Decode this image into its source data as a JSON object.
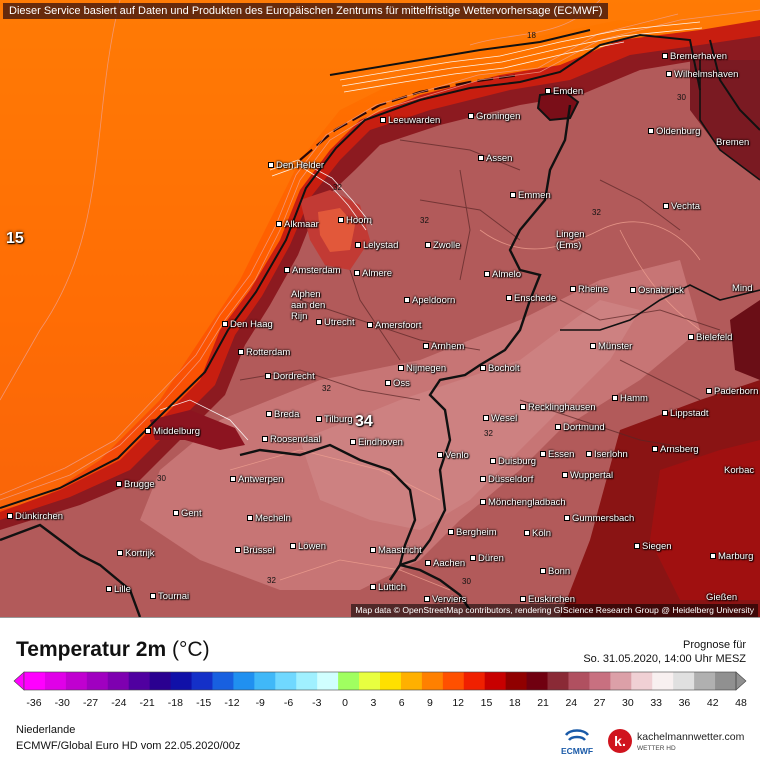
{
  "banner": "Dieser Service basiert auf Daten und Produkten des Europäischen Zentrums für mittelfristige Wettervorhersage (ECMWF)",
  "attribution": "Map data © OpenStreetMap contributors, rendering GIScience Research Group @ Heidelberg University",
  "title": "Temperatur 2m",
  "unit": "(°C)",
  "forecast": {
    "label": "Prognose für",
    "datetime": "So. 31.05.2020, 14:00 Uhr MESZ"
  },
  "region": "Niederlande",
  "model": "ECMWF/Global Euro HD vom  22.05.2020/00z",
  "logos": {
    "ecmwf": "ECMWF",
    "kachelmann_name": "kachelmannwetter.com",
    "kachelmann_sub": "WETTER HD"
  },
  "scale": {
    "ticks": [
      "-36",
      "-30",
      "-27",
      "-24",
      "-21",
      "-18",
      "-15",
      "-12",
      "-9",
      "-6",
      "-3",
      "0",
      "3",
      "6",
      "9",
      "12",
      "15",
      "18",
      "21",
      "24",
      "27",
      "30",
      "33",
      "36",
      "42",
      "48"
    ],
    "colors": [
      "#ff00ff",
      "#e000e8",
      "#c000d0",
      "#a000c0",
      "#7e00b0",
      "#5000a0",
      "#2a0090",
      "#1010a8",
      "#1430c8",
      "#1860e0",
      "#2090f0",
      "#40b8f8",
      "#70d8ff",
      "#a0f0ff",
      "#d0ffff",
      "#a0ff60",
      "#e8ff40",
      "#ffe000",
      "#ffb000",
      "#ff8000",
      "#ff5000",
      "#f02000",
      "#c80000",
      "#900000",
      "#700010",
      "#8a2a36",
      "#b05060",
      "#c87080",
      "#dca0a8",
      "#f0d0d4",
      "#f8f0f0",
      "#e0e0e0",
      "#b0b0b0",
      "#909090"
    ]
  },
  "map": {
    "cities": [
      {
        "name": "Bremerhaven",
        "dot": true
      },
      {
        "name": "Wilhelmshaven",
        "dot": true
      },
      {
        "name": "Emden",
        "dot": true
      },
      {
        "name": "Leeuwarden",
        "dot": true
      },
      {
        "name": "Groningen",
        "dot": true
      },
      {
        "name": "Oldenburg",
        "dot": true
      },
      {
        "name": "Bremen",
        "dot": false
      },
      {
        "name": "Den Helder",
        "dot": true
      },
      {
        "name": "Assen",
        "dot": true
      },
      {
        "name": "Emmen",
        "dot": true
      },
      {
        "name": "Vechta",
        "dot": true
      },
      {
        "name": "Alkmaar",
        "dot": true
      },
      {
        "name": "Hoorn",
        "dot": true
      },
      {
        "name": "Lingen\n(Ems)",
        "dot": true
      },
      {
        "name": "Lelystad",
        "dot": true
      },
      {
        "name": "Zwolle",
        "dot": true
      },
      {
        "name": "Amsterdam",
        "dot": true
      },
      {
        "name": "Almere",
        "dot": true
      },
      {
        "name": "Almelo",
        "dot": true
      },
      {
        "name": "Rheine",
        "dot": true
      },
      {
        "name": "Osnabrück",
        "dot": true
      },
      {
        "name": "Mind",
        "dot": false
      },
      {
        "name": "Alphen\naan den\nRijn",
        "dot": true
      },
      {
        "name": "Apeldoorn",
        "dot": true
      },
      {
        "name": "Enschede",
        "dot": true
      },
      {
        "name": "Den Haag",
        "dot": true
      },
      {
        "name": "Utrecht",
        "dot": true
      },
      {
        "name": "Amersfoort",
        "dot": true
      },
      {
        "name": "Bielefeld",
        "dot": true
      },
      {
        "name": "Rotterdam",
        "dot": true
      },
      {
        "name": "Arnhem",
        "dot": true
      },
      {
        "name": "Münster",
        "dot": true
      },
      {
        "name": "Dordrecht",
        "dot": true
      },
      {
        "name": "Nijmegen",
        "dot": true
      },
      {
        "name": "Oss",
        "dot": true
      },
      {
        "name": "Bocholt",
        "dot": true
      },
      {
        "name": "Paderborn",
        "dot": true
      },
      {
        "name": "Breda",
        "dot": true
      },
      {
        "name": "Tilburg",
        "dot": true
      },
      {
        "name": "Wesel",
        "dot": true
      },
      {
        "name": "Recklinghausen",
        "dot": true
      },
      {
        "name": "Hamm",
        "dot": true
      },
      {
        "name": "Lippstadt",
        "dot": true
      },
      {
        "name": "Middelburg",
        "dot": true
      },
      {
        "name": "Roosendaal",
        "dot": true
      },
      {
        "name": "Eindhoven",
        "dot": true
      },
      {
        "name": "Dortmund",
        "dot": true
      },
      {
        "name": "Venlo",
        "dot": true
      },
      {
        "name": "Duisburg",
        "dot": true
      },
      {
        "name": "Essen",
        "dot": true
      },
      {
        "name": "Iserlohn",
        "dot": true
      },
      {
        "name": "Arnsberg",
        "dot": true
      },
      {
        "name": "Korbac",
        "dot": false
      },
      {
        "name": "Brugge",
        "dot": true
      },
      {
        "name": "Antwerpen",
        "dot": true
      },
      {
        "name": "Düsseldorf",
        "dot": true
      },
      {
        "name": "Wuppertal",
        "dot": true
      },
      {
        "name": "Mönchengladbach",
        "dot": true
      },
      {
        "name": "Dünkirchen",
        "dot": true
      },
      {
        "name": "Gent",
        "dot": true
      },
      {
        "name": "Mecheln",
        "dot": true
      },
      {
        "name": "Gummersbach",
        "dot": true
      },
      {
        "name": "Bergheim",
        "dot": true
      },
      {
        "name": "Köln",
        "dot": true
      },
      {
        "name": "Kortrijk",
        "dot": true
      },
      {
        "name": "Brüssel",
        "dot": true
      },
      {
        "name": "Löwen",
        "dot": true
      },
      {
        "name": "Maastricht",
        "dot": true
      },
      {
        "name": "Siegen",
        "dot": true
      },
      {
        "name": "Marburg",
        "dot": true
      },
      {
        "name": "Düren",
        "dot": true
      },
      {
        "name": "Aachen",
        "dot": true
      },
      {
        "name": "Bonn",
        "dot": true
      },
      {
        "name": "Lille",
        "dot": true
      },
      {
        "name": "Tournai",
        "dot": true
      },
      {
        "name": "Lüttich",
        "dot": true
      },
      {
        "name": "Verviers",
        "dot": true
      },
      {
        "name": "Euskirchen",
        "dot": true
      },
      {
        "name": "Gießen",
        "dot": false
      }
    ],
    "isolines": [
      "18",
      "32",
      "32",
      "32",
      "32",
      "32",
      "32",
      "30",
      "30",
      "30",
      "32",
      "32",
      "32"
    ],
    "values": [
      "15",
      "34"
    ]
  }
}
